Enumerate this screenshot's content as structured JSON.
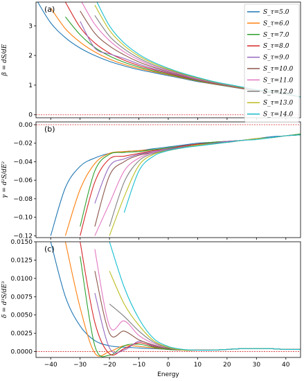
{
  "chart_data": {
    "type": "line",
    "x_label": "Energy",
    "x_range": [
      -45,
      45
    ],
    "x_ticks": [
      -40,
      -30,
      -20,
      -10,
      0,
      10,
      20,
      30,
      40
    ],
    "legend_position": "top-right",
    "legend": [
      "S_τ=5.0",
      "S_τ=6.0",
      "S_τ=7.0",
      "S_τ=8.0",
      "S_τ=9.0",
      "S_τ=10.0",
      "S_τ=11.0",
      "S_τ=12.0",
      "S_τ=13.0",
      "S_τ=14.0"
    ],
    "colors": [
      "#1f77b4",
      "#ff7f0e",
      "#2ca02c",
      "#d62728",
      "#9467bd",
      "#8c564b",
      "#e377c2",
      "#7f7f7f",
      "#bcbd22",
      "#17becf"
    ],
    "panels": [
      {
        "label": "(a)",
        "ylabel": "β = dS/dE",
        "ylim": [
          -0.1,
          3.8
        ],
        "yticks": [
          0,
          1,
          2,
          3
        ],
        "ytick_labels": [
          "0",
          "1",
          "2",
          "3"
        ],
        "reference_line": 0,
        "x": [
          -45,
          -40,
          -35,
          -30,
          -25,
          -20,
          -15,
          -10,
          -5,
          0,
          5,
          10,
          15,
          20,
          25,
          30,
          35,
          40,
          45
        ],
        "series": [
          {
            "name": "S_τ=5.0",
            "values": [
              3.9,
              3.1,
              2.6,
              2.25,
              2.0,
              1.8,
              1.65,
              1.52,
              1.42,
              1.32,
              1.22,
              1.12,
              1.04,
              0.96,
              0.88,
              0.8,
              0.74,
              0.68,
              0.6
            ]
          },
          {
            "name": "S_τ=6.0",
            "values": [
              null,
              3.6,
              2.9,
              2.45,
              2.12,
              1.88,
              1.7,
              1.56,
              1.45,
              1.35,
              1.24,
              1.14,
              1.05,
              0.97,
              0.89,
              0.81,
              0.75,
              0.69,
              0.6
            ]
          },
          {
            "name": "S_τ=7.0",
            "values": [
              null,
              null,
              3.3,
              2.7,
              2.27,
              1.98,
              1.77,
              1.61,
              1.48,
              1.37,
              1.26,
              1.15,
              1.06,
              0.98,
              0.9,
              0.82,
              0.75,
              0.69,
              0.6
            ]
          },
          {
            "name": "S_τ=8.0",
            "values": [
              null,
              null,
              3.8,
              2.95,
              2.42,
              2.08,
              1.84,
              1.66,
              1.52,
              1.4,
              1.28,
              1.17,
              1.07,
              0.99,
              0.9,
              0.82,
              0.76,
              0.7,
              0.6
            ]
          },
          {
            "name": "S_τ=9.0",
            "values": [
              null,
              null,
              null,
              3.15,
              2.25,
              2.05,
              1.9,
              1.71,
              1.55,
              1.42,
              1.3,
              1.18,
              1.08,
              0.99,
              0.91,
              0.83,
              0.76,
              0.7,
              0.6
            ]
          },
          {
            "name": "S_τ=10.0",
            "values": [
              null,
              null,
              null,
              3.5,
              2.75,
              2.32,
              2.02,
              1.78,
              1.6,
              1.45,
              1.32,
              1.2,
              1.09,
              1.0,
              0.91,
              0.83,
              0.77,
              0.7,
              0.6
            ]
          },
          {
            "name": "S_τ=11.0",
            "values": [
              null,
              null,
              null,
              3.9,
              3.05,
              2.5,
              2.12,
              1.85,
              1.64,
              1.48,
              1.34,
              1.21,
              1.1,
              1.01,
              0.92,
              0.84,
              0.77,
              0.71,
              0.6
            ]
          },
          {
            "name": "S_τ=12.0",
            "values": [
              null,
              null,
              null,
              null,
              3.35,
              2.65,
              2.22,
              1.91,
              1.68,
              1.51,
              1.36,
              1.23,
              1.11,
              1.02,
              0.92,
              0.84,
              0.78,
              0.71,
              0.6
            ]
          },
          {
            "name": "S_τ=13.0",
            "values": [
              null,
              null,
              null,
              null,
              3.7,
              2.85,
              2.33,
              1.98,
              1.73,
              1.54,
              1.38,
              1.24,
              1.12,
              1.02,
              0.93,
              0.85,
              0.78,
              0.71,
              0.6
            ]
          },
          {
            "name": "S_τ=14.0",
            "values": [
              null,
              null,
              null,
              null,
              3.95,
              3.0,
              2.42,
              2.04,
              1.77,
              1.57,
              1.4,
              1.26,
              1.13,
              1.03,
              0.94,
              0.85,
              0.79,
              0.72,
              0.6
            ]
          }
        ]
      },
      {
        "label": "(b)",
        "ylabel": "γ = d²S/dE²",
        "ylim": [
          -0.122,
          0.003
        ],
        "yticks": [
          0.0,
          -0.02,
          -0.04,
          -0.06,
          -0.08,
          -0.1,
          -0.12
        ],
        "ytick_labels": [
          "0.00",
          "−0.02",
          "−0.04",
          "−0.06",
          "−0.08",
          "−0.10",
          "−0.12"
        ],
        "reference_line": 0,
        "x": [
          -40,
          -35,
          -30,
          -25,
          -20,
          -15,
          -10,
          -5,
          0,
          5,
          10,
          15,
          20,
          25,
          30,
          35,
          40,
          45
        ],
        "series": [
          {
            "name": "S_τ=5.0",
            "values": [
              -0.12,
              -0.068,
              -0.045,
              -0.036,
              -0.031,
              -0.029,
              -0.028,
              -0.026,
              -0.024,
              -0.022,
              -0.02,
              -0.019,
              -0.018,
              -0.017,
              -0.015,
              -0.013,
              -0.012,
              -0.01
            ]
          },
          {
            "name": "S_τ=6.0",
            "values": [
              null,
              -0.12,
              -0.07,
              -0.042,
              -0.031,
              -0.029,
              -0.028,
              -0.027,
              -0.025,
              -0.023,
              -0.021,
              -0.019,
              -0.018,
              -0.017,
              -0.015,
              -0.014,
              -0.012,
              -0.01
            ]
          },
          {
            "name": "S_τ=7.0",
            "values": [
              null,
              null,
              -0.11,
              -0.05,
              -0.032,
              -0.03,
              -0.029,
              -0.027,
              -0.025,
              -0.023,
              -0.021,
              -0.019,
              -0.018,
              -0.017,
              -0.015,
              -0.014,
              -0.012,
              -0.01
            ]
          },
          {
            "name": "S_τ=8.0",
            "values": [
              null,
              null,
              -0.12,
              -0.062,
              -0.037,
              -0.034,
              -0.031,
              -0.028,
              -0.026,
              -0.023,
              -0.021,
              -0.02,
              -0.018,
              -0.017,
              -0.015,
              -0.014,
              -0.012,
              -0.011
            ]
          },
          {
            "name": "S_τ=9.0",
            "values": [
              null,
              null,
              null,
              -0.085,
              -0.045,
              -0.037,
              -0.032,
              -0.029,
              -0.026,
              -0.024,
              -0.022,
              -0.02,
              -0.018,
              -0.017,
              -0.015,
              -0.014,
              -0.012,
              -0.011
            ]
          },
          {
            "name": "S_τ=10.0",
            "values": [
              null,
              null,
              null,
              -0.11,
              -0.055,
              -0.04,
              -0.033,
              -0.03,
              -0.027,
              -0.024,
              -0.022,
              -0.02,
              -0.019,
              -0.017,
              -0.015,
              -0.014,
              -0.012,
              -0.011
            ]
          },
          {
            "name": "S_τ=11.0",
            "values": [
              null,
              null,
              null,
              -0.12,
              -0.085,
              -0.05,
              -0.036,
              -0.03,
              -0.027,
              -0.024,
              -0.022,
              -0.02,
              -0.019,
              -0.017,
              -0.015,
              -0.014,
              -0.012,
              -0.011
            ]
          },
          {
            "name": "S_τ=12.0",
            "values": [
              null,
              null,
              null,
              null,
              -0.11,
              -0.062,
              -0.039,
              -0.031,
              -0.027,
              -0.024,
              -0.022,
              -0.02,
              -0.019,
              -0.017,
              -0.015,
              -0.014,
              -0.012,
              -0.011
            ]
          },
          {
            "name": "S_τ=13.0",
            "values": [
              null,
              null,
              null,
              null,
              -0.12,
              -0.078,
              -0.044,
              -0.032,
              -0.028,
              -0.025,
              -0.022,
              -0.021,
              -0.019,
              -0.017,
              -0.015,
              -0.014,
              -0.012,
              -0.011
            ]
          },
          {
            "name": "S_τ=14.0",
            "values": [
              null,
              null,
              null,
              null,
              null,
              -0.095,
              -0.05,
              -0.034,
              -0.028,
              -0.025,
              -0.023,
              -0.021,
              -0.019,
              -0.017,
              -0.016,
              -0.014,
              -0.012,
              -0.011
            ]
          }
        ]
      },
      {
        "label": "(c)",
        "ylabel": "δ = d³S/dE³",
        "ylim": [
          -0.0008,
          0.015
        ],
        "yticks": [
          0.0,
          0.0025,
          0.005,
          0.0075,
          0.01,
          0.0125,
          0.015
        ],
        "ytick_labels": [
          "0.0000",
          "0.0025",
          "0.0050",
          "0.0075",
          "0.0100",
          "0.0125",
          "0.0150"
        ],
        "reference_line": 0,
        "x": [
          -40,
          -35,
          -30,
          -25,
          -20,
          -15,
          -10,
          -5,
          0,
          5,
          10,
          15,
          20,
          25,
          30,
          35,
          40,
          45
        ],
        "series": [
          {
            "name": "S_τ=5.0",
            "values": [
              0.015,
              0.0075,
              0.0035,
              0.0015,
              0.0008,
              0.0006,
              0.0005,
              0.0004,
              0.0003,
              0.0002,
              0.0002,
              0.0002,
              0.0003,
              0.0004,
              0.0004,
              0.0004,
              0.0003,
              0.0003
            ]
          },
          {
            "name": "S_τ=6.0",
            "values": [
              null,
              0.015,
              0.006,
              -0.0002,
              0.0,
              0.0008,
              0.0007,
              0.0005,
              0.0003,
              0.0002,
              0.0002,
              0.0002,
              0.0003,
              0.0004,
              0.0004,
              0.0004,
              0.0003,
              0.0003
            ]
          },
          {
            "name": "S_τ=7.0",
            "values": [
              null,
              null,
              0.013,
              0.0008,
              -0.0005,
              0.0008,
              0.001,
              0.0006,
              0.0003,
              0.0002,
              0.0002,
              0.0002,
              0.0003,
              0.0004,
              0.0004,
              0.0004,
              0.0003,
              0.0003
            ]
          },
          {
            "name": "S_τ=8.0",
            "values": [
              null,
              null,
              0.015,
              0.004,
              -0.0003,
              0.0004,
              0.0012,
              0.0007,
              0.0004,
              0.0002,
              0.0002,
              0.0002,
              0.0003,
              0.0004,
              0.0004,
              0.0004,
              0.0003,
              0.0003
            ]
          },
          {
            "name": "S_τ=9.0",
            "values": [
              null,
              null,
              null,
              0.008,
              0.0005,
              0.0002,
              0.0014,
              0.0008,
              0.0004,
              0.0002,
              0.0002,
              0.0002,
              0.0003,
              0.0004,
              0.0004,
              0.0004,
              0.0003,
              0.0003
            ]
          },
          {
            "name": "S_τ=10.0",
            "values": [
              null,
              null,
              null,
              0.011,
              0.0025,
              0.0028,
              0.0016,
              0.0009,
              0.0004,
              0.0002,
              0.0002,
              0.0002,
              0.0003,
              0.0004,
              0.0004,
              0.0004,
              0.0003,
              0.0003
            ]
          },
          {
            "name": "S_τ=11.0",
            "values": [
              null,
              null,
              null,
              0.014,
              0.0035,
              0.0042,
              0.0022,
              0.0011,
              0.0005,
              0.0002,
              0.0002,
              0.0002,
              0.0003,
              0.0004,
              0.0004,
              0.0004,
              0.0003,
              0.0003
            ]
          },
          {
            "name": "S_τ=12.0",
            "values": [
              null,
              null,
              null,
              null,
              0.0065,
              0.0048,
              0.0028,
              0.0013,
              0.0005,
              0.0002,
              0.0002,
              0.0002,
              0.0003,
              0.0004,
              0.0004,
              0.0004,
              0.0003,
              0.0003
            ]
          },
          {
            "name": "S_τ=13.0",
            "values": [
              null,
              null,
              null,
              null,
              0.011,
              0.0065,
              0.0036,
              0.0015,
              0.0006,
              0.0002,
              0.0002,
              0.0002,
              0.0003,
              0.0004,
              0.0004,
              0.0004,
              0.0003,
              0.0003
            ]
          },
          {
            "name": "S_τ=14.0",
            "values": [
              null,
              null,
              null,
              null,
              0.015,
              0.0088,
              0.0045,
              0.0018,
              0.0007,
              0.0003,
              0.0002,
              0.0002,
              0.0003,
              0.0004,
              0.0004,
              0.0004,
              0.0003,
              0.0003
            ]
          }
        ]
      }
    ]
  }
}
